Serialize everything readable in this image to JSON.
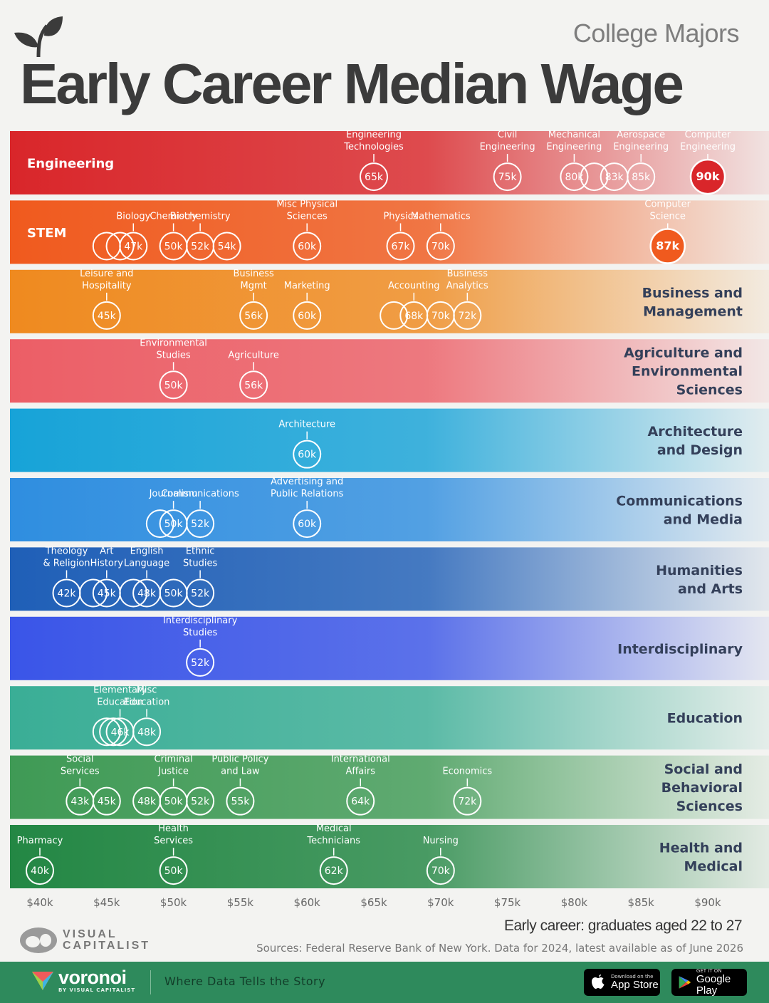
{
  "header": {
    "subtitle": "College Majors",
    "title": "Early Career Median Wage"
  },
  "footnote": {
    "axis_note": "Early career: graduates aged 22 to 27",
    "sources": "Sources: Federal Reserve Bank of New York. Data for 2024, latest available as of June 2026"
  },
  "branding": {
    "vc_line1": "VISUAL",
    "vc_line2": "CAPITALIST",
    "voronoi": "voronoi",
    "voronoi_by": "BY VISUAL CAPITALIST",
    "tagline": "Where Data Tells the Story",
    "app_store_small": "Download on the",
    "app_store_big": "App Store",
    "google_small": "GET IT ON",
    "google_big": "Google Play"
  },
  "colors": {
    "title": "#3b3b3b",
    "footer": "#2e8a5c"
  },
  "chart_data": {
    "type": "scatter",
    "title": "Early Career Median Wage",
    "subtitle": "College Majors",
    "x_ticks": [
      "$40k",
      "$45k",
      "$50k",
      "$55k",
      "$60k",
      "$65k",
      "$70k",
      "$75k",
      "$80k",
      "$85k",
      "$90k"
    ],
    "x_tick_values": [
      40,
      45,
      50,
      55,
      60,
      65,
      70,
      75,
      80,
      85,
      90
    ],
    "xlim": [
      40,
      90
    ],
    "x_unit": "thousand USD",
    "groups": [
      {
        "name": "Engineering",
        "label_lines": [
          "Engineering"
        ],
        "label_side": "left",
        "color": "#d9262a",
        "points": [
          {
            "label": "Engineering Technologies",
            "lines": [
              "Engineering",
              "Technologies"
            ],
            "value": 65,
            "text": "65k"
          },
          {
            "label": "Civil Engineering",
            "lines": [
              "Civil",
              "Engineering"
            ],
            "value": 75,
            "text": "75k"
          },
          {
            "label": "Mechanical Engineering",
            "lines": [
              "Mechanical",
              "Engineering"
            ],
            "value": 80,
            "text": "80k"
          },
          {
            "label": "",
            "lines": [],
            "value": 81.5,
            "text": ""
          },
          {
            "label": "",
            "lines": [],
            "value": 83,
            "text": "83k"
          },
          {
            "label": "Aerospace Engineering",
            "lines": [
              "Aerospace",
              "Engineering"
            ],
            "value": 85,
            "text": "85k"
          },
          {
            "label": "Computer Engineering",
            "lines": [
              "Computer",
              "Engineering"
            ],
            "value": 90,
            "text": "90k",
            "highlight": true
          }
        ]
      },
      {
        "name": "STEM",
        "label_lines": [
          "STEM"
        ],
        "label_side": "left",
        "color": "#f05a1e",
        "points": [
          {
            "label": "",
            "lines": [],
            "value": 45,
            "text": ""
          },
          {
            "label": "",
            "lines": [],
            "value": 46,
            "text": ""
          },
          {
            "label": "Biology",
            "lines": [
              "Biology"
            ],
            "value": 47,
            "text": "47k"
          },
          {
            "label": "Chemistry",
            "lines": [
              "Chemistry"
            ],
            "value": 50,
            "text": "50k"
          },
          {
            "label": "Biochemistry",
            "lines": [
              "Biochemistry"
            ],
            "value": 52,
            "text": "52k"
          },
          {
            "label": "",
            "lines": [],
            "value": 54,
            "text": "54k"
          },
          {
            "label": "Misc Physical Sciences",
            "lines": [
              "Misc Physical",
              "Sciences"
            ],
            "value": 60,
            "text": "60k"
          },
          {
            "label": "Physics",
            "lines": [
              "Physics"
            ],
            "value": 67,
            "text": "67k"
          },
          {
            "label": "Mathematics",
            "lines": [
              "Mathematics"
            ],
            "value": 70,
            "text": "70k"
          },
          {
            "label": "Computer Science",
            "lines": [
              "Computer",
              "Science"
            ],
            "value": 87,
            "text": "87k",
            "highlight": true
          }
        ]
      },
      {
        "name": "Business and Management",
        "label_lines": [
          "Business and",
          "Management"
        ],
        "label_side": "right",
        "color": "#ef8a1f",
        "points": [
          {
            "label": "Leisure and Hospitality",
            "lines": [
              "Leisure and",
              "Hospitality"
            ],
            "value": 45,
            "text": "45k"
          },
          {
            "label": "Business Mgmt",
            "lines": [
              "Business",
              "Mgmt"
            ],
            "value": 56,
            "text": "56k"
          },
          {
            "label": "Marketing",
            "lines": [
              "Marketing"
            ],
            "value": 60,
            "text": "60k"
          },
          {
            "label": "",
            "lines": [],
            "value": 66.5,
            "text": ""
          },
          {
            "label": "Accounting",
            "lines": [
              "Accounting"
            ],
            "value": 68,
            "text": "68k"
          },
          {
            "label": "",
            "lines": [],
            "value": 70,
            "text": "70k"
          },
          {
            "label": "Business Analytics",
            "lines": [
              "Business",
              "Analytics"
            ],
            "value": 72,
            "text": "72k"
          }
        ]
      },
      {
        "name": "Agriculture and Environmental Sciences",
        "label_lines": [
          "Agriculture and",
          "Environmental",
          "Sciences"
        ],
        "label_side": "right",
        "color": "#ec5e66",
        "points": [
          {
            "label": "Environmental Studies",
            "lines": [
              "Environmental",
              "Studies"
            ],
            "value": 50,
            "text": "50k"
          },
          {
            "label": "Agriculture",
            "lines": [
              "Agriculture"
            ],
            "value": 56,
            "text": "56k"
          }
        ]
      },
      {
        "name": "Architecture and Design",
        "label_lines": [
          "Architecture",
          "and Design"
        ],
        "label_side": "right",
        "color": "#17a3d8",
        "points": [
          {
            "label": "Architecture",
            "lines": [
              "Architecture"
            ],
            "value": 60,
            "text": "60k"
          }
        ]
      },
      {
        "name": "Communications and Media",
        "label_lines": [
          "Communications",
          "and Media"
        ],
        "label_side": "right",
        "color": "#2f8ee0",
        "points": [
          {
            "label": "",
            "lines": [],
            "value": 49,
            "text": ""
          },
          {
            "label": "Journalism",
            "lines": [
              "Journalism"
            ],
            "value": 50,
            "text": "50k"
          },
          {
            "label": "Communications",
            "lines": [
              "Communications"
            ],
            "value": 52,
            "text": "52k"
          },
          {
            "label": "Advertising and Public Relations",
            "lines": [
              "Advertising and",
              "Public Relations"
            ],
            "value": 60,
            "text": "60k"
          }
        ]
      },
      {
        "name": "Humanities and Arts",
        "label_lines": [
          "Humanities",
          "and Arts"
        ],
        "label_side": "right",
        "color": "#1f5fb7",
        "points": [
          {
            "label": "Theology & Religion",
            "lines": [
              "Theology",
              "& Religion"
            ],
            "value": 42,
            "text": "42k"
          },
          {
            "label": "",
            "lines": [],
            "value": 44,
            "text": ""
          },
          {
            "label": "Art History",
            "lines": [
              "Art",
              "History"
            ],
            "value": 45,
            "text": "45k"
          },
          {
            "label": "",
            "lines": [],
            "value": 47,
            "text": ""
          },
          {
            "label": "English Language",
            "lines": [
              "English",
              "Language"
            ],
            "value": 48,
            "text": "48k"
          },
          {
            "label": "",
            "lines": [],
            "value": 50,
            "text": "50k"
          },
          {
            "label": "Ethnic Studies",
            "lines": [
              "Ethnic",
              "Studies"
            ],
            "value": 52,
            "text": "52k"
          }
        ]
      },
      {
        "name": "Interdisciplinary",
        "label_lines": [
          "Interdisciplinary"
        ],
        "label_side": "right",
        "color": "#3a55e8",
        "points": [
          {
            "label": "Interdisciplinary Studies",
            "lines": [
              "Interdisciplinary",
              "Studies"
            ],
            "value": 52,
            "text": "52k"
          }
        ]
      },
      {
        "name": "Education",
        "label_lines": [
          "Education"
        ],
        "label_side": "right",
        "color": "#3aae96",
        "points": [
          {
            "label": "",
            "lines": [],
            "value": 45,
            "text": ""
          },
          {
            "label": "",
            "lines": [],
            "value": 45.5,
            "text": ""
          },
          {
            "label": "Elementary Education",
            "lines": [
              "Elementary",
              "Education"
            ],
            "value": 46,
            "text": "46k"
          },
          {
            "label": "Misc Education",
            "lines": [
              "Misc",
              "Education"
            ],
            "value": 48,
            "text": "48k"
          }
        ]
      },
      {
        "name": "Social and Behavioral Sciences",
        "label_lines": [
          "Social and",
          "Behavioral",
          "Sciences"
        ],
        "label_side": "right",
        "color": "#3f9a55",
        "points": [
          {
            "label": "Social Services",
            "lines": [
              "Social",
              "Services"
            ],
            "value": 43,
            "text": "43k"
          },
          {
            "label": "",
            "lines": [],
            "value": 45,
            "text": "45k"
          },
          {
            "label": "",
            "lines": [],
            "value": 48,
            "text": "48k"
          },
          {
            "label": "Criminal Justice",
            "lines": [
              "Criminal",
              "Justice"
            ],
            "value": 50,
            "text": "50k"
          },
          {
            "label": "",
            "lines": [],
            "value": 52,
            "text": "52k"
          },
          {
            "label": "Public Policy and Law",
            "lines": [
              "Public Policy",
              "and Law"
            ],
            "value": 55,
            "text": "55k"
          },
          {
            "label": "International Affairs",
            "lines": [
              "International",
              "Affairs"
            ],
            "value": 64,
            "text": "64k"
          },
          {
            "label": "Economics",
            "lines": [
              "Economics"
            ],
            "value": 72,
            "text": "72k"
          }
        ]
      },
      {
        "name": "Health and Medical",
        "label_lines": [
          "Health and",
          "Medical"
        ],
        "label_side": "right",
        "color": "#238744",
        "points": [
          {
            "label": "Pharmacy",
            "lines": [
              "Pharmacy"
            ],
            "value": 40,
            "text": "40k"
          },
          {
            "label": "Health Services",
            "lines": [
              "Health",
              "Services"
            ],
            "value": 50,
            "text": "50k"
          },
          {
            "label": "Medical Technicians",
            "lines": [
              "Medical",
              "Technicians"
            ],
            "value": 62,
            "text": "62k"
          },
          {
            "label": "Nursing",
            "lines": [
              "Nursing"
            ],
            "value": 70,
            "text": "70k"
          }
        ]
      }
    ]
  }
}
